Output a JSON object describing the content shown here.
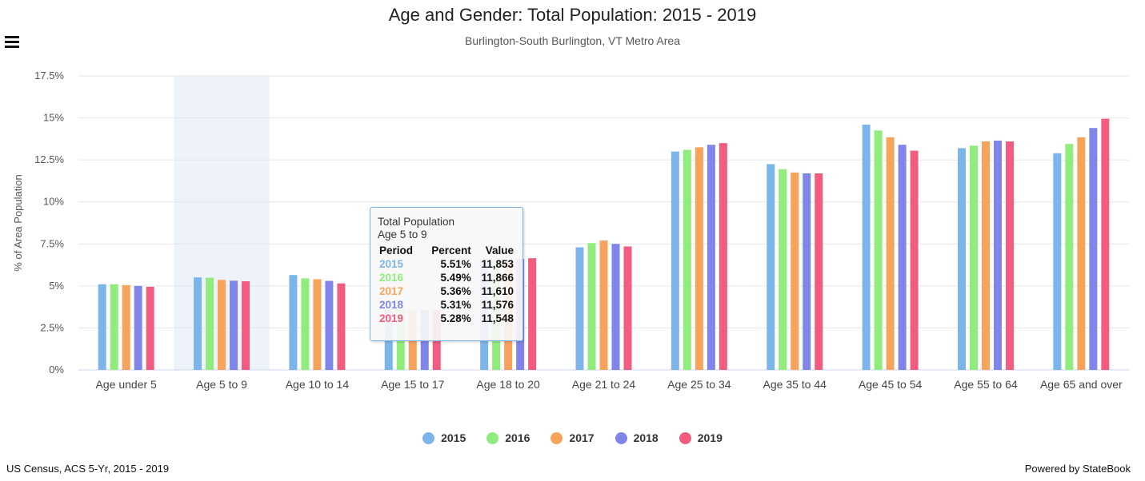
{
  "header": {
    "title": "Age and Gender: Total Population: 2015 - 2019",
    "subtitle": "Burlington-South Burlington, VT Metro Area",
    "menu_icon": "hamburger-menu-icon"
  },
  "footer": {
    "source": "US Census, ACS 5-Yr, 2015 - 2019",
    "powered": "Powered by StateBook"
  },
  "tooltip": {
    "title": "Total Population",
    "category": "Age 5 to 9",
    "headers": [
      "Period",
      "Percent",
      "Value"
    ],
    "rows": [
      {
        "period": "2015",
        "percent": "5.51%",
        "value": "11,853"
      },
      {
        "period": "2016",
        "percent": "5.49%",
        "value": "11,866"
      },
      {
        "period": "2017",
        "percent": "5.36%",
        "value": "11,610"
      },
      {
        "period": "2018",
        "percent": "5.31%",
        "value": "11,576"
      },
      {
        "period": "2019",
        "percent": "5.28%",
        "value": "11,548"
      }
    ]
  },
  "colors": {
    "2015": "#7cb5ec",
    "2016": "#90ed7d",
    "2017": "#f7a35c",
    "2018": "#8085e9",
    "2019": "#f15c80",
    "highlight": "#eef3f9"
  },
  "chart_data": {
    "type": "bar",
    "title": "Age and Gender: Total Population: 2015 - 2019",
    "subtitle": "Burlington-South Burlington, VT Metro Area",
    "xlabel": "",
    "ylabel": "% of Area Population",
    "ylim": [
      0,
      17.5
    ],
    "yticks": [
      "0%",
      "2.5%",
      "5%",
      "7.5%",
      "10%",
      "12.5%",
      "15%",
      "17.5%"
    ],
    "ytick_values": [
      0,
      2.5,
      5,
      7.5,
      10,
      12.5,
      15,
      17.5
    ],
    "highlighted_category": "Age 5 to 9",
    "legend_position": "bottom-center",
    "categories": [
      "Age under 5",
      "Age 5 to 9",
      "Age 10 to 14",
      "Age 15 to 17",
      "Age 18 to 20",
      "Age 21 to 24",
      "Age 25 to 34",
      "Age 35 to 44",
      "Age 45 to 54",
      "Age 55 to 64",
      "Age 65 and over"
    ],
    "series": [
      {
        "name": "2015",
        "values": [
          5.1,
          5.51,
          5.65,
          3.6,
          6.6,
          7.3,
          13.0,
          12.25,
          14.6,
          13.2,
          12.9
        ]
      },
      {
        "name": "2016",
        "values": [
          5.1,
          5.49,
          5.45,
          3.6,
          6.6,
          7.55,
          13.1,
          11.95,
          14.25,
          13.35,
          13.45
        ]
      },
      {
        "name": "2017",
        "values": [
          5.05,
          5.36,
          5.4,
          3.55,
          6.6,
          7.7,
          13.25,
          11.75,
          13.85,
          13.6,
          13.85
        ]
      },
      {
        "name": "2018",
        "values": [
          5.0,
          5.31,
          5.3,
          3.55,
          6.6,
          7.5,
          13.4,
          11.7,
          13.4,
          13.65,
          14.4
        ]
      },
      {
        "name": "2019",
        "values": [
          4.95,
          5.28,
          5.15,
          3.55,
          6.65,
          7.35,
          13.5,
          11.7,
          13.05,
          13.6,
          14.95
        ]
      }
    ]
  }
}
